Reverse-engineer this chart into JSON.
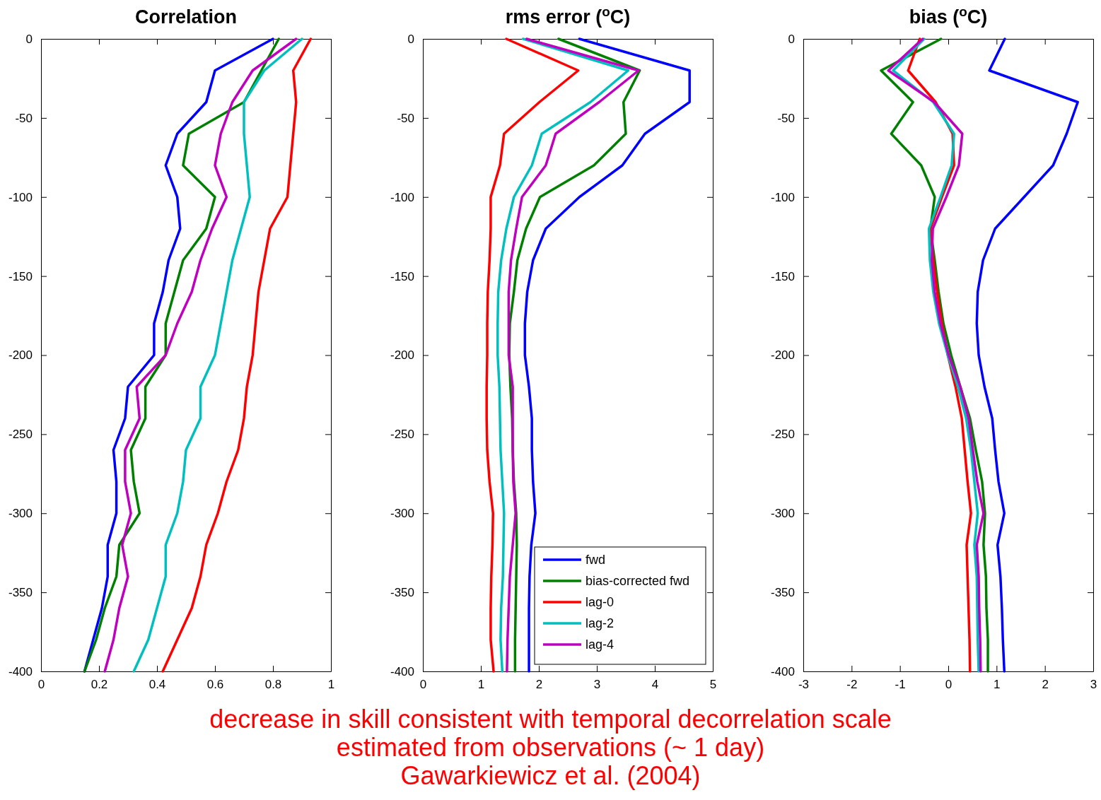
{
  "chart_data": [
    {
      "type": "line",
      "title": "Correlation",
      "xlim": [
        0,
        1
      ],
      "xticks": [
        0,
        0.2,
        0.4,
        0.6,
        0.8,
        1
      ],
      "ylim": [
        -400,
        0
      ],
      "yticks": [
        0,
        -50,
        -100,
        -150,
        -200,
        -250,
        -300,
        -350,
        -400
      ],
      "grid": false,
      "legend": false,
      "series": [
        {
          "color": "#0000ff",
          "x": [
            0.8,
            0.6,
            0.57,
            0.47,
            0.43,
            0.47,
            0.48,
            0.44,
            0.42,
            0.39,
            0.39,
            0.3,
            0.29,
            0.25,
            0.26,
            0.26,
            0.23,
            0.23,
            0.21,
            0.18,
            0.15
          ],
          "values": [
            0,
            -20,
            -40,
            -60,
            -80,
            -100,
            -120,
            -140,
            -160,
            -180,
            -200,
            -220,
            -240,
            -260,
            -280,
            -300,
            -320,
            -340,
            -360,
            -380,
            -400
          ]
        },
        {
          "color": "#008000",
          "x": [
            0.82,
            0.76,
            0.7,
            0.51,
            0.49,
            0.6,
            0.57,
            0.49,
            0.46,
            0.43,
            0.43,
            0.36,
            0.36,
            0.31,
            0.32,
            0.34,
            0.27,
            0.26,
            0.22,
            0.19,
            0.15
          ],
          "values": [
            0,
            -20,
            -40,
            -60,
            -80,
            -100,
            -120,
            -140,
            -160,
            -180,
            -200,
            -220,
            -240,
            -260,
            -280,
            -300,
            -320,
            -340,
            -360,
            -380,
            -400
          ]
        },
        {
          "color": "#ff0000",
          "x": [
            0.93,
            0.87,
            0.88,
            0.87,
            0.86,
            0.85,
            0.79,
            0.77,
            0.75,
            0.74,
            0.73,
            0.71,
            0.7,
            0.68,
            0.64,
            0.61,
            0.57,
            0.55,
            0.52,
            0.47,
            0.42
          ],
          "values": [
            0,
            -20,
            -40,
            -60,
            -80,
            -100,
            -120,
            -140,
            -160,
            -180,
            -200,
            -220,
            -240,
            -260,
            -280,
            -300,
            -320,
            -340,
            -360,
            -380,
            -400
          ]
        },
        {
          "color": "#00bfbf",
          "x": [
            0.9,
            0.77,
            0.7,
            0.7,
            0.71,
            0.72,
            0.69,
            0.66,
            0.64,
            0.62,
            0.6,
            0.55,
            0.55,
            0.5,
            0.49,
            0.47,
            0.43,
            0.43,
            0.4,
            0.37,
            0.32
          ],
          "values": [
            0,
            -20,
            -40,
            -60,
            -80,
            -100,
            -120,
            -140,
            -160,
            -180,
            -200,
            -220,
            -240,
            -260,
            -280,
            -300,
            -320,
            -340,
            -360,
            -380,
            -400
          ]
        },
        {
          "color": "#bf00bf",
          "x": [
            0.88,
            0.73,
            0.66,
            0.62,
            0.6,
            0.64,
            0.59,
            0.55,
            0.52,
            0.47,
            0.43,
            0.33,
            0.34,
            0.29,
            0.29,
            0.31,
            0.28,
            0.3,
            0.27,
            0.25,
            0.22
          ],
          "values": [
            0,
            -20,
            -40,
            -60,
            -80,
            -100,
            -120,
            -140,
            -160,
            -180,
            -200,
            -220,
            -240,
            -260,
            -280,
            -300,
            -320,
            -340,
            -360,
            -380,
            -400
          ]
        }
      ]
    },
    {
      "type": "line",
      "title": "rms error ($^{o}$C)",
      "xlim": [
        0,
        5
      ],
      "xticks": [
        0,
        1,
        2,
        3,
        4,
        5
      ],
      "ylim": [
        -400,
        0
      ],
      "yticks": [
        0,
        -50,
        -100,
        -150,
        -200,
        -250,
        -300,
        -350,
        -400
      ],
      "grid": false,
      "legend": "bottom right",
      "annotations": [
        "decrease in skill consistent with temporal decorrelation scale",
        "estimated from observations (~ 1 day)",
        "Gawarkiewicz et al. (2004)"
      ],
      "series": [
        {
          "name": "fwd",
          "color": "#0000ff",
          "x": [
            2.7,
            4.6,
            4.6,
            3.83,
            3.44,
            2.7,
            2.12,
            1.9,
            1.8,
            1.76,
            1.76,
            1.83,
            1.88,
            1.88,
            1.9,
            1.94,
            1.87,
            1.84,
            1.83,
            1.83,
            1.83
          ],
          "values": [
            0,
            -20,
            -40,
            -60,
            -80,
            -100,
            -120,
            -140,
            -160,
            -180,
            -200,
            -220,
            -240,
            -260,
            -280,
            -300,
            -320,
            -340,
            -360,
            -380,
            -400
          ]
        },
        {
          "name": "bias-corrected fwd",
          "color": "#008000",
          "x": [
            2.34,
            3.74,
            3.46,
            3.5,
            2.95,
            2.02,
            1.78,
            1.63,
            1.57,
            1.5,
            1.49,
            1.51,
            1.54,
            1.55,
            1.57,
            1.61,
            1.62,
            1.61,
            1.6,
            1.59,
            1.59
          ],
          "values": [
            0,
            -20,
            -40,
            -60,
            -80,
            -100,
            -120,
            -140,
            -160,
            -180,
            -200,
            -220,
            -240,
            -260,
            -280,
            -300,
            -320,
            -340,
            -360,
            -380,
            -400
          ]
        },
        {
          "name": "lag-0",
          "color": "#ff0000",
          "x": [
            1.44,
            2.68,
            2.01,
            1.4,
            1.33,
            1.17,
            1.17,
            1.15,
            1.12,
            1.11,
            1.11,
            1.1,
            1.1,
            1.11,
            1.15,
            1.21,
            1.2,
            1.18,
            1.17,
            1.17,
            1.22
          ],
          "values": [
            0,
            -20,
            -40,
            -60,
            -80,
            -100,
            -120,
            -140,
            -160,
            -180,
            -200,
            -220,
            -240,
            -260,
            -280,
            -300,
            -320,
            -340,
            -360,
            -380,
            -400
          ]
        },
        {
          "name": "lag-2",
          "color": "#00bfbf",
          "x": [
            1.73,
            3.54,
            2.89,
            2.05,
            1.88,
            1.57,
            1.44,
            1.35,
            1.3,
            1.29,
            1.29,
            1.32,
            1.33,
            1.34,
            1.37,
            1.4,
            1.39,
            1.38,
            1.35,
            1.34,
            1.37
          ],
          "values": [
            0,
            -20,
            -40,
            -60,
            -80,
            -100,
            -120,
            -140,
            -160,
            -180,
            -200,
            -220,
            -240,
            -260,
            -280,
            -300,
            -320,
            -340,
            -360,
            -380,
            -400
          ]
        },
        {
          "name": "lag-4",
          "color": "#bf00bf",
          "x": [
            1.79,
            3.72,
            3.04,
            2.29,
            2.12,
            1.71,
            1.61,
            1.52,
            1.48,
            1.48,
            1.48,
            1.55,
            1.55,
            1.55,
            1.56,
            1.6,
            1.55,
            1.5,
            1.48,
            1.46,
            1.45
          ],
          "values": [
            0,
            -20,
            -40,
            -60,
            -80,
            -100,
            -120,
            -140,
            -160,
            -180,
            -200,
            -220,
            -240,
            -260,
            -280,
            -300,
            -320,
            -340,
            -360,
            -380,
            -400
          ]
        }
      ]
    },
    {
      "type": "line",
      "title": "bias ($^{o}$C)",
      "xlim": [
        -3,
        3
      ],
      "xticks": [
        -3,
        -2,
        -1,
        0,
        1,
        2,
        3
      ],
      "ylim": [
        -400,
        0
      ],
      "yticks": [
        0,
        -50,
        -100,
        -150,
        -200,
        -250,
        -300,
        -350,
        -400
      ],
      "grid": false,
      "legend": false,
      "series": [
        {
          "color": "#0000ff",
          "x": [
            1.17,
            0.85,
            2.68,
            2.45,
            2.17,
            1.57,
            0.97,
            0.72,
            0.61,
            0.59,
            0.63,
            0.75,
            0.91,
            0.97,
            1.04,
            1.16,
            1.02,
            1.08,
            1.11,
            1.13,
            1.16
          ],
          "values": [
            0,
            -20,
            -40,
            -60,
            -80,
            -100,
            -120,
            -140,
            -160,
            -180,
            -200,
            -220,
            -240,
            -260,
            -280,
            -300,
            -320,
            -340,
            -360,
            -380,
            -400
          ]
        },
        {
          "color": "#008000",
          "x": [
            -0.15,
            -1.39,
            -0.73,
            -1.18,
            -0.56,
            -0.28,
            -0.37,
            -0.28,
            -0.2,
            -0.1,
            0.06,
            0.25,
            0.45,
            0.57,
            0.7,
            0.76,
            0.73,
            0.78,
            0.79,
            0.82,
            0.82
          ],
          "values": [
            0,
            -20,
            -40,
            -60,
            -80,
            -100,
            -120,
            -140,
            -160,
            -180,
            -200,
            -220,
            -240,
            -260,
            -280,
            -300,
            -320,
            -340,
            -360,
            -380,
            -400
          ]
        },
        {
          "color": "#ff0000",
          "x": [
            -0.59,
            -0.83,
            -0.26,
            0.09,
            0.12,
            -0.13,
            -0.37,
            -0.31,
            -0.23,
            -0.13,
            -0.01,
            0.15,
            0.28,
            0.34,
            0.4,
            0.47,
            0.38,
            0.4,
            0.42,
            0.44,
            0.45
          ],
          "values": [
            0,
            -20,
            -40,
            -60,
            -80,
            -100,
            -120,
            -140,
            -160,
            -180,
            -200,
            -220,
            -240,
            -260,
            -280,
            -300,
            -320,
            -340,
            -360,
            -380,
            -400
          ]
        },
        {
          "color": "#00bfbf",
          "x": [
            -0.5,
            -1.14,
            -0.31,
            0.12,
            0.07,
            -0.16,
            -0.4,
            -0.38,
            -0.31,
            -0.19,
            -0.01,
            0.2,
            0.37,
            0.47,
            0.54,
            0.61,
            0.54,
            0.59,
            0.6,
            0.61,
            0.63
          ],
          "values": [
            0,
            -20,
            -40,
            -60,
            -80,
            -100,
            -120,
            -140,
            -160,
            -180,
            -200,
            -220,
            -240,
            -260,
            -280,
            -300,
            -320,
            -340,
            -360,
            -380,
            -400
          ]
        },
        {
          "color": "#bf00bf",
          "x": [
            -0.53,
            -1.24,
            -0.29,
            0.29,
            0.22,
            -0.04,
            -0.32,
            -0.34,
            -0.28,
            -0.16,
            0.01,
            0.25,
            0.42,
            0.51,
            0.6,
            0.73,
            0.59,
            0.63,
            0.64,
            0.66,
            0.67
          ],
          "values": [
            0,
            -20,
            -40,
            -60,
            -80,
            -100,
            -120,
            -140,
            -160,
            -180,
            -200,
            -220,
            -240,
            -260,
            -280,
            -300,
            -320,
            -340,
            -360,
            -380,
            -400
          ]
        }
      ]
    }
  ]
}
